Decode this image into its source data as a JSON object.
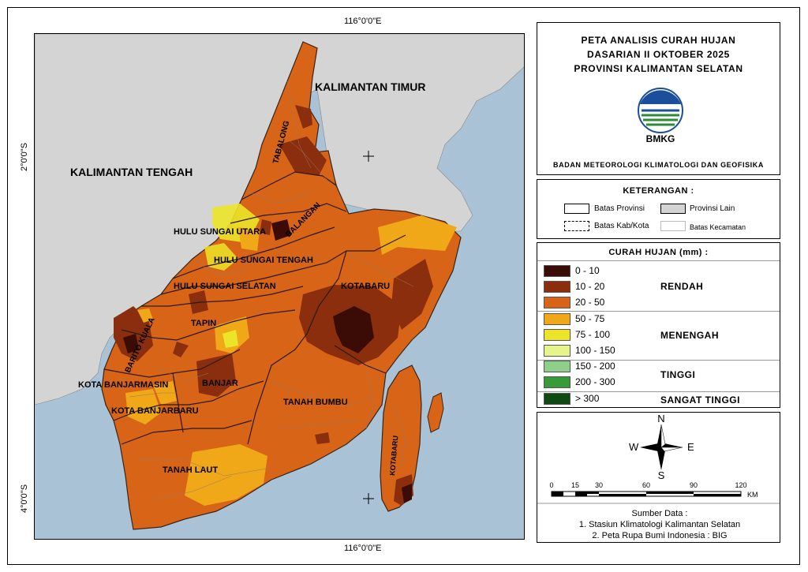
{
  "coords": {
    "top_lon": "116°0'0\"E",
    "bottom_lon": "116°0'0\"E",
    "lat_2s": "2°0'0\"S",
    "lat_4s": "4°0'0\"S"
  },
  "title": {
    "line1": "PETA ANALISIS CURAH HUJAN",
    "line2": "DASARIAN II OKTOBER 2025",
    "line3": "PROVINSI KALIMANTAN SELATAN",
    "logo_text": "BMKG",
    "agency": "BADAN METEOROLOGI KLIMATOLOGI DAN GEOFISIKA"
  },
  "legend": {
    "title": "KETERANGAN :",
    "batas_provinsi": "Batas Provinsi",
    "provinsi_lain": "Provinsi Lain",
    "batas_kab": "Batas Kab/Kota",
    "batas_kecamatan": "Batas Kecamatan"
  },
  "rainfall": {
    "title": "CURAH HUJAN (mm) :",
    "classes": [
      {
        "label": "0 - 10",
        "color": "#3a0c05"
      },
      {
        "label": "10 - 20",
        "color": "#8a2e0e"
      },
      {
        "label": "20 - 50",
        "color": "#d86418"
      },
      {
        "label": "50 - 75",
        "color": "#f0a818"
      },
      {
        "label": "75 - 100",
        "color": "#ece428"
      },
      {
        "label": "100 - 150",
        "color": "#e6f58a"
      },
      {
        "label": "150 - 200",
        "color": "#8ed08a"
      },
      {
        "label": "200 - 300",
        "color": "#3a9a3a"
      },
      {
        "label": "> 300",
        "color": "#0e4a12"
      }
    ],
    "categories": {
      "rendah": "RENDAH",
      "menengah": "MENENGAH",
      "tinggi": "TINGGI",
      "sangat_tinggi": "SANGAT TINGGI"
    }
  },
  "compass": {
    "n": "N",
    "s": "S",
    "e": "E",
    "w": "W"
  },
  "scalebar": {
    "ticks": [
      "0",
      "15",
      "30",
      "60",
      "90",
      "120"
    ],
    "unit": "KM"
  },
  "source": {
    "title": "Sumber Data :",
    "line1": "1. Stasiun Klimatologi Kalimantan Selatan",
    "line2": "2. Peta Rupa Bumi Indonesia : BIG"
  },
  "map_labels": {
    "kaltim": "KALIMANTAN TIMUR",
    "kalteng": "KALIMANTAN TENGAH",
    "tabalong": "TABALONG",
    "balangan": "BALANGAN",
    "hsu": "HULU SUNGAI UTARA",
    "hst": "HULU SUNGAI TENGAH",
    "hss": "HULU SUNGAI SELATAN",
    "kotabaru": "KOTABARU",
    "kotabaru_island": "KOTABARU",
    "tapin": "TAPIN",
    "barito_kuala": "BARITO KUALA",
    "banjarmasin": "KOTA BANJARMASIN",
    "banjar": "BANJAR",
    "banjarbaru": "KOTA BANJARBARU",
    "tanah_bumbu": "TANAH BUMBU",
    "tanah_laut": "TANAH LAUT"
  },
  "colors": {
    "sea": "#a9c2d5",
    "other_province": "#d4d4d4"
  }
}
